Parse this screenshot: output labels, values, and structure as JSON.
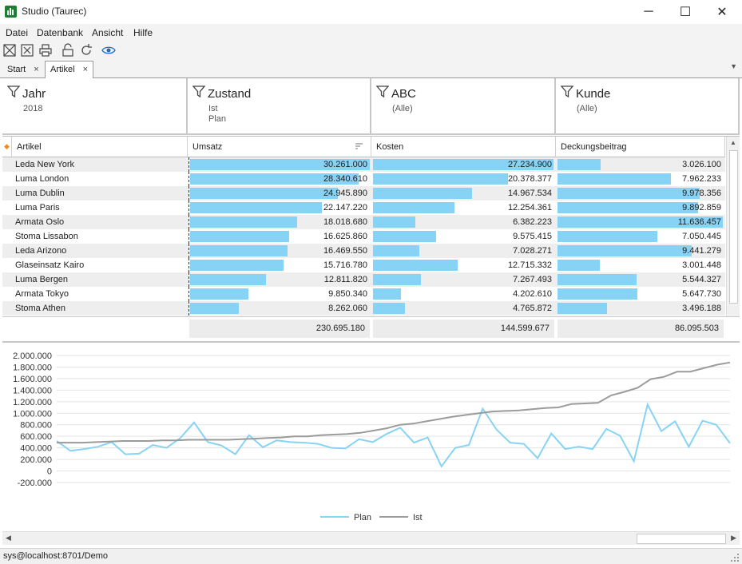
{
  "window": {
    "title": "Studio (Taurec)",
    "minimize": "─",
    "maximize": "☐",
    "close": "✕"
  },
  "menu": [
    "Datei",
    "Datenbank",
    "Ansicht",
    "Hilfe"
  ],
  "toolbar": [
    "close-all-icon",
    "close-icon",
    "print-icon",
    "lock-icon",
    "refresh-icon",
    "view-icon"
  ],
  "tabs": [
    {
      "label": "Start",
      "close": "×"
    },
    {
      "label": "Artikel",
      "close": "×",
      "active": true
    }
  ],
  "filters": [
    {
      "title": "Jahr",
      "values": [
        "2018"
      ]
    },
    {
      "title": "Zustand",
      "values": [
        "Ist",
        "Plan"
      ]
    },
    {
      "title": "ABC",
      "values": [
        "(Alle)"
      ]
    },
    {
      "title": "Kunde",
      "values": [
        "(Alle)"
      ]
    }
  ],
  "grid": {
    "columns": [
      "Artikel",
      "Umsatz",
      "Kosten",
      "Deckungsbeitrag"
    ],
    "rows": [
      {
        "name": "Leda New York",
        "umsatz": "30.261.000",
        "kosten": "27.234.900",
        "db": "3.026.100",
        "u": 30261000,
        "k": 27234900,
        "d": 3026100
      },
      {
        "name": "Luma London",
        "umsatz": "28.340.610",
        "kosten": "20.378.377",
        "db": "7.962.233",
        "u": 28340610,
        "k": 20378377,
        "d": 7962233
      },
      {
        "name": "Luma Dublin",
        "umsatz": "24.945.890",
        "kosten": "14.967.534",
        "db": "9.978.356",
        "u": 24945890,
        "k": 14967534,
        "d": 9978356
      },
      {
        "name": "Luma Paris",
        "umsatz": "22.147.220",
        "kosten": "12.254.361",
        "db": "9.892.859",
        "u": 22147220,
        "k": 12254361,
        "d": 9892859
      },
      {
        "name": "Armata Oslo",
        "umsatz": "18.018.680",
        "kosten": "6.382.223",
        "db": "11.636.457",
        "u": 18018680,
        "k": 6382223,
        "d": 11636457
      },
      {
        "name": "Stoma Lissabon",
        "umsatz": "16.625.860",
        "kosten": "9.575.415",
        "db": "7.050.445",
        "u": 16625860,
        "k": 9575415,
        "d": 7050445
      },
      {
        "name": "Leda Arizono",
        "umsatz": "16.469.550",
        "kosten": "7.028.271",
        "db": "9.441.279",
        "u": 16469550,
        "k": 7028271,
        "d": 9441279
      },
      {
        "name": "Glaseinsatz Kairo",
        "umsatz": "15.716.780",
        "kosten": "12.715.332",
        "db": "3.001.448",
        "u": 15716780,
        "k": 12715332,
        "d": 3001448
      },
      {
        "name": "Luma Bergen",
        "umsatz": "12.811.820",
        "kosten": "7.267.493",
        "db": "5.544.327",
        "u": 12811820,
        "k": 7267493,
        "d": 5544327
      },
      {
        "name": "Armata Tokyo",
        "umsatz": "9.850.340",
        "kosten": "4.202.610",
        "db": "5.647.730",
        "u": 9850340,
        "k": 4202610,
        "d": 5647730
      },
      {
        "name": "Stoma Athen",
        "umsatz": "8.262.060",
        "kosten": "4.765.872",
        "db": "3.496.188",
        "u": 8262060,
        "k": 4765872,
        "d": 3496188
      }
    ],
    "totals": {
      "umsatz": "230.695.180",
      "kosten": "144.599.677",
      "db": "86.095.503"
    }
  },
  "chart_data": {
    "type": "line",
    "title": "",
    "xlabel": "",
    "ylabel": "",
    "ylim": [
      -200000,
      2000000
    ],
    "ytick_labels": [
      "2.000.000",
      "1.800.000",
      "1.600.000",
      "1.400.000",
      "1.200.000",
      "1.000.000",
      "800.000",
      "600.000",
      "400.000",
      "200.000",
      "0",
      "-200.000"
    ],
    "grid": true,
    "legend": "bottom",
    "series": [
      {
        "name": "Plan",
        "color": "#87d3f5",
        "values": [
          520000,
          350000,
          380000,
          420000,
          500000,
          290000,
          300000,
          450000,
          400000,
          570000,
          840000,
          500000,
          440000,
          290000,
          620000,
          410000,
          530000,
          500000,
          490000,
          470000,
          400000,
          390000,
          550000,
          500000,
          640000,
          750000,
          490000,
          580000,
          80000,
          400000,
          450000,
          1080000,
          720000,
          490000,
          470000,
          220000,
          650000,
          380000,
          420000,
          380000,
          730000,
          610000,
          170000,
          1150000,
          690000,
          860000,
          420000,
          870000,
          800000,
          480000
        ]
      },
      {
        "name": "Ist",
        "color": "#9b9b9b",
        "values": [
          490000,
          490000,
          490000,
          500000,
          510000,
          520000,
          520000,
          520000,
          530000,
          530000,
          540000,
          540000,
          540000,
          540000,
          550000,
          560000,
          570000,
          580000,
          600000,
          600000,
          620000,
          630000,
          640000,
          660000,
          700000,
          740000,
          800000,
          820000,
          860000,
          900000,
          940000,
          970000,
          1000000,
          1030000,
          1040000,
          1050000,
          1070000,
          1090000,
          1100000,
          1160000,
          1170000,
          1180000,
          1310000,
          1370000,
          1440000,
          1590000,
          1630000,
          1720000,
          1720000,
          1780000,
          1840000,
          1880000
        ]
      }
    ]
  },
  "status": {
    "connection": "sys@localhost:8701/Demo"
  }
}
